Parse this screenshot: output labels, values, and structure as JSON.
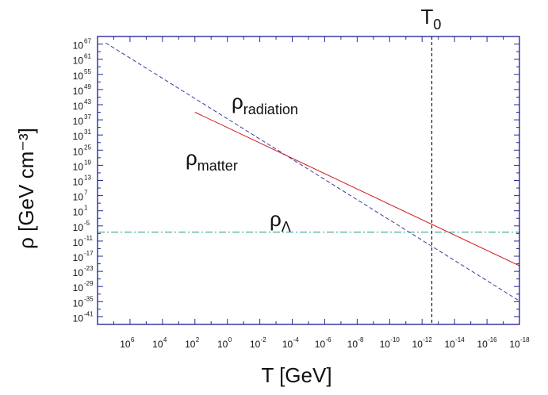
{
  "chart_data": {
    "type": "line",
    "xlabel": "T [GeV]",
    "ylabel": "ρ [GeV cm⁻³]",
    "x_scale": "log",
    "x_reversed": true,
    "xlim_exp": [
      8,
      -18
    ],
    "y_scale": "log",
    "ylim_exp": [
      -44,
      70
    ],
    "x_ticks": [
      {
        "base": "10",
        "exp": "6"
      },
      {
        "base": "10",
        "exp": "4"
      },
      {
        "base": "10",
        "exp": "2"
      },
      {
        "base": "10",
        "exp": "0"
      },
      {
        "base": "10",
        "exp": "-2"
      },
      {
        "base": "10",
        "exp": "-4"
      },
      {
        "base": "10",
        "exp": "-6"
      },
      {
        "base": "10",
        "exp": "-8"
      },
      {
        "base": "10",
        "exp": "-10"
      },
      {
        "base": "10",
        "exp": "-12"
      },
      {
        "base": "10",
        "exp": "-14"
      },
      {
        "base": "10",
        "exp": "-16"
      },
      {
        "base": "10",
        "exp": "-18"
      }
    ],
    "y_ticks": [
      {
        "base": "10",
        "exp": "67"
      },
      {
        "base": "10",
        "exp": "61"
      },
      {
        "base": "10",
        "exp": "55"
      },
      {
        "base": "10",
        "exp": "49"
      },
      {
        "base": "10",
        "exp": "43"
      },
      {
        "base": "10",
        "exp": "37"
      },
      {
        "base": "10",
        "exp": "31"
      },
      {
        "base": "10",
        "exp": "25"
      },
      {
        "base": "10",
        "exp": "19"
      },
      {
        "base": "10",
        "exp": "13"
      },
      {
        "base": "10",
        "exp": "7"
      },
      {
        "base": "10",
        "exp": "1"
      },
      {
        "base": "10",
        "exp": "-5"
      },
      {
        "base": "10",
        "exp": "-11"
      },
      {
        "base": "10",
        "exp": "-17"
      },
      {
        "base": "10",
        "exp": "-23"
      },
      {
        "base": "10",
        "exp": "-29"
      },
      {
        "base": "10",
        "exp": "-35"
      },
      {
        "base": "10",
        "exp": "-41"
      }
    ],
    "series": [
      {
        "label_base": "ρ",
        "label_sub": "radiation",
        "color": "#3a3aa0",
        "style": "dashed",
        "points": [
          [
            7.5,
            67.5
          ],
          [
            -18,
            -34.7
          ]
        ]
      },
      {
        "label_base": "ρ",
        "label_sub": "matter",
        "color": "#d01818",
        "style": "solid",
        "points": [
          [
            2,
            40
          ],
          [
            -18,
            -20.8
          ]
        ]
      },
      {
        "label_base": "ρ",
        "label_sub": "Λ",
        "color": "#1a9a8a",
        "style": "dashdot",
        "points": [
          [
            8,
            -7.5
          ],
          [
            -18,
            -7.5
          ]
        ]
      }
    ],
    "vline": {
      "x_exp": -12.6,
      "label_base": "T",
      "label_sub": "0",
      "color": "#222222",
      "style": "dashed"
    },
    "frame_color": "#2b2b9a"
  }
}
